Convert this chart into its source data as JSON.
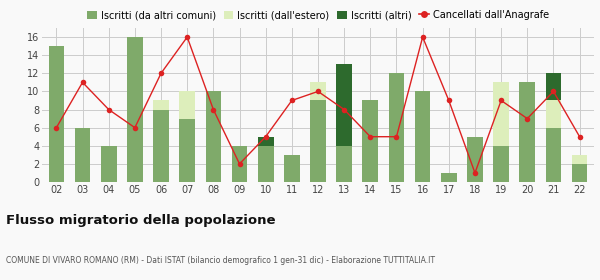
{
  "years": [
    "02",
    "03",
    "04",
    "05",
    "06",
    "07",
    "08",
    "09",
    "10",
    "11",
    "12",
    "13",
    "14",
    "15",
    "16",
    "17",
    "18",
    "19",
    "20",
    "21",
    "22"
  ],
  "iscritti_comuni": [
    15,
    6,
    4,
    16,
    8,
    7,
    10,
    4,
    4,
    3,
    9,
    4,
    9,
    12,
    10,
    1,
    5,
    4,
    11,
    6,
    2
  ],
  "iscritti_estero": [
    0,
    0,
    0,
    0,
    1,
    3,
    0,
    0,
    0,
    0,
    2,
    0,
    0,
    0,
    0,
    0,
    0,
    7,
    0,
    3,
    1
  ],
  "iscritti_altri": [
    0,
    0,
    0,
    0,
    0,
    0,
    0,
    0,
    1,
    0,
    0,
    9,
    0,
    0,
    0,
    0,
    0,
    0,
    0,
    3,
    0
  ],
  "cancellati": [
    6,
    11,
    8,
    6,
    12,
    16,
    8,
    2,
    5,
    9,
    10,
    8,
    5,
    5,
    16,
    9,
    1,
    9,
    7,
    10,
    5
  ],
  "color_comuni": "#7faa6a",
  "color_estero": "#ddeebb",
  "color_altri": "#2d6a2d",
  "color_cancellati": "#dd2222",
  "title": "Flusso migratorio della popolazione",
  "subtitle": "COMUNE DI VIVARO ROMANO (RM) - Dati ISTAT (bilancio demografico 1 gen-31 dic) - Elaborazione TUTTITALIA.IT",
  "legend_labels": [
    "Iscritti (da altri comuni)",
    "Iscritti (dall'estero)",
    "Iscritti (altri)",
    "Cancellati dall'Anagrafe"
  ],
  "ylim": [
    0,
    17
  ],
  "yticks": [
    0,
    2,
    4,
    6,
    8,
    10,
    12,
    14,
    16
  ],
  "background_color": "#f9f9f9",
  "grid_color": "#cccccc",
  "bar_width": 0.6
}
